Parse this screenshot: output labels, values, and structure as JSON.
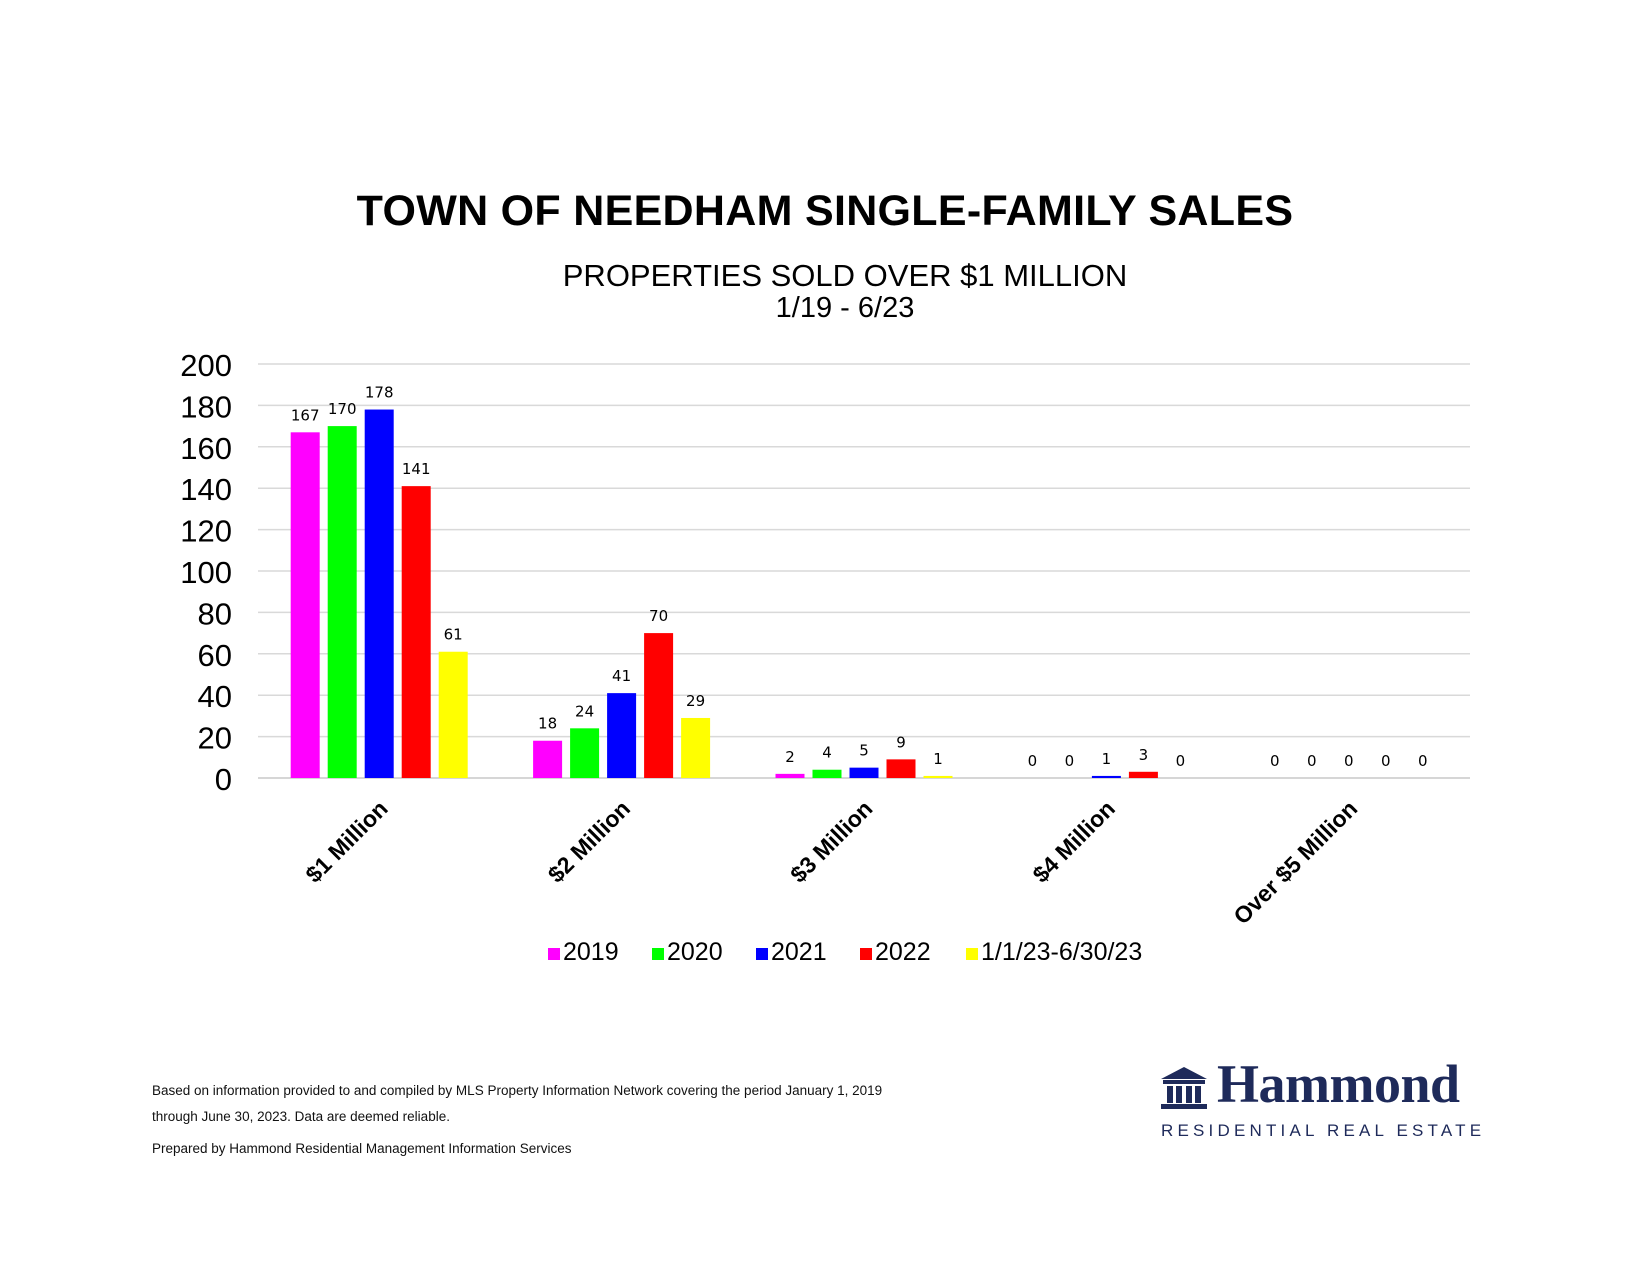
{
  "chart_data": {
    "type": "bar",
    "title": "TOWN OF NEEDHAM SINGLE-FAMILY SALES",
    "subtitle": "PROPERTIES SOLD OVER $1 MILLION",
    "period": "1/19 - 6/23",
    "categories": [
      "$1 Million",
      "$2 Million",
      "$3 Million",
      "$4 Million",
      "Over $5 Million"
    ],
    "series": [
      {
        "name": "2019",
        "color": "#ff00ff",
        "values": [
          167,
          18,
          2,
          0,
          0
        ]
      },
      {
        "name": "2020",
        "color": "#00ff00",
        "values": [
          170,
          24,
          4,
          0,
          0
        ]
      },
      {
        "name": "2021",
        "color": "#0000ff",
        "values": [
          178,
          41,
          5,
          1,
          0
        ]
      },
      {
        "name": "2022",
        "color": "#ff0000",
        "values": [
          141,
          70,
          9,
          3,
          0
        ]
      },
      {
        "name": "1/1/23-6/30/23",
        "color": "#ffff00",
        "values": [
          61,
          29,
          1,
          0,
          0
        ]
      }
    ],
    "ylim": [
      0,
      200
    ],
    "yticks": [
      0,
      20,
      40,
      60,
      80,
      100,
      120,
      140,
      160,
      180,
      200
    ],
    "grid": true,
    "legend_position": "bottom"
  },
  "footnotes": {
    "line1": "Based on information provided to and compiled by MLS Property Information Network covering the period January 1, 2019",
    "line2": "through June 30, 2023. Data are deemed reliable.",
    "line3": "Prepared by Hammond Residential Management Information Services"
  },
  "logo": {
    "name": "Hammond",
    "tagline": "RESIDENTIAL REAL ESTATE",
    "icon": "building-columns-icon",
    "color": "#1e2a5a"
  }
}
